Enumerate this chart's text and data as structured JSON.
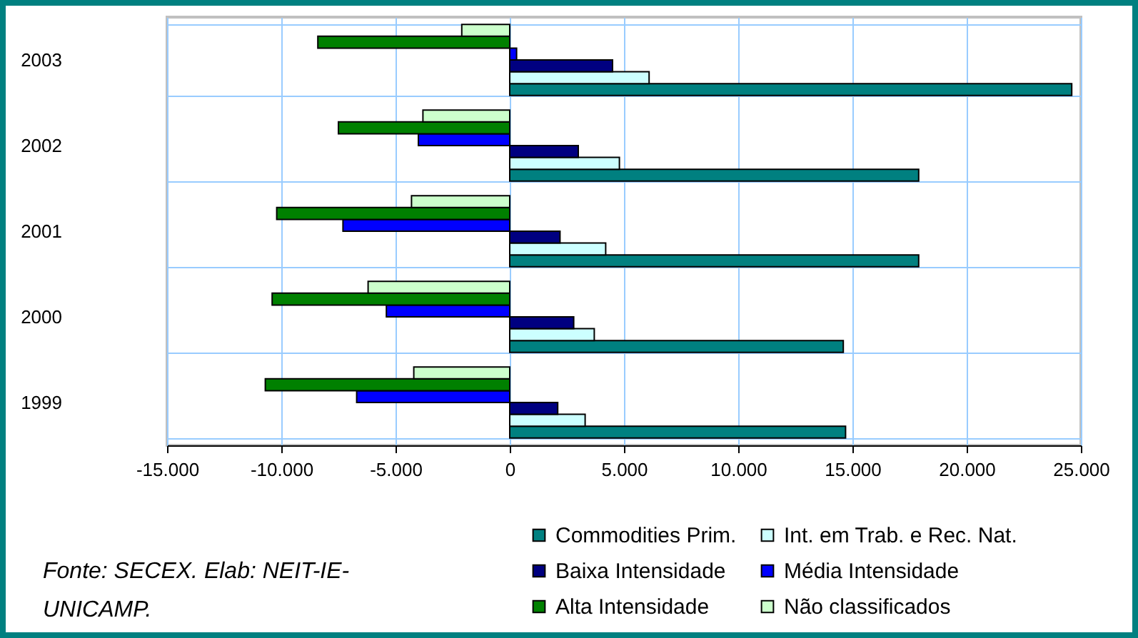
{
  "chart_data": {
    "type": "bar",
    "orientation": "horizontal",
    "categories": [
      "2003",
      "2002",
      "2001",
      "2000",
      "1999"
    ],
    "series": [
      {
        "name": "Commodities Prim.",
        "color": "#008080",
        "values": [
          24600,
          17900,
          17900,
          14600,
          14700
        ]
      },
      {
        "name": "Int. em Trab. e Rec. Nat.",
        "color": "#ccffff",
        "values": [
          6100,
          4800,
          4200,
          3700,
          3300
        ]
      },
      {
        "name": "Baixa Intensidade",
        "color": "#000080",
        "values": [
          4500,
          3000,
          2200,
          2800,
          2100
        ]
      },
      {
        "name": "Média Intensidade",
        "color": "#0000ff",
        "values": [
          300,
          -4000,
          -7300,
          -5400,
          -6700
        ]
      },
      {
        "name": "Alta Intensidade",
        "color": "#008000",
        "values": [
          -8400,
          -7500,
          -10200,
          -10400,
          -10700
        ]
      },
      {
        "name": "Não classificados",
        "color": "#ccffcc",
        "values": [
          -2100,
          -3800,
          -4300,
          -6200,
          -4200
        ]
      }
    ],
    "xlim": [
      -15000,
      25000
    ],
    "xticks": [
      {
        "value": -15000,
        "label": "-15.000"
      },
      {
        "value": -10000,
        "label": "-10.000"
      },
      {
        "value": -5000,
        "label": "-5.000"
      },
      0,
      {
        "value": 5000,
        "label": "5.000"
      },
      {
        "value": 10000,
        "label": "10.000"
      },
      {
        "value": 15000,
        "label": "15.000"
      },
      {
        "value": 20000,
        "label": "20.000"
      },
      {
        "value": 25000,
        "label": "25.000"
      }
    ],
    "grid": true,
    "legend": "bottom right",
    "annotations": [
      "Fonte: SECEX. Elab: NEIT-IE-UNICAMP."
    ]
  }
}
